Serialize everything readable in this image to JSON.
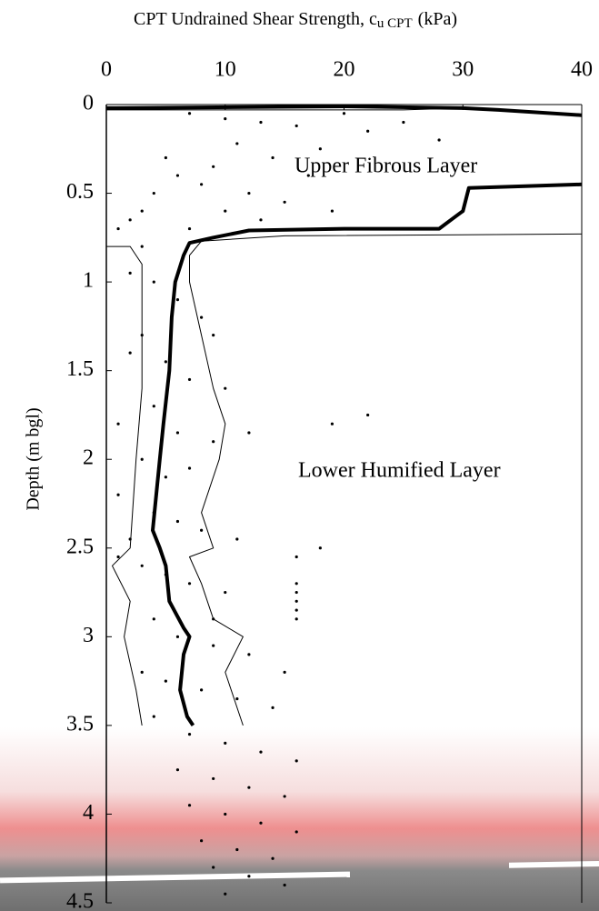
{
  "chart_data": {
    "type": "scatter",
    "xlabel": "CPT Undrained Shear Strength, c",
    "xlabel_sub": "u CPT",
    "xlabel_unit": "(kPa)",
    "ylabel": "Depth (m bgl)",
    "annotations": [
      "Upper Fibrous Layer",
      "Lower Humified Layer"
    ],
    "xlim": [
      0,
      40
    ],
    "xticks": [
      0,
      10,
      20,
      30,
      40
    ],
    "ylim": [
      0,
      4.5
    ],
    "yticks": [
      0,
      0.5,
      1,
      1.5,
      2,
      2.5,
      3,
      3.5,
      4,
      4.5
    ],
    "y_inverted": true,
    "x_axis_position": "top",
    "series": [
      {
        "mode": "markers",
        "color": "#000000",
        "x": [
          7,
          10,
          13,
          16,
          20,
          22,
          25,
          28,
          18,
          14,
          11,
          9,
          6,
          4,
          3,
          2,
          1,
          8,
          12,
          15,
          17,
          19,
          13,
          10,
          7,
          5,
          3,
          2,
          4,
          6,
          8,
          9,
          3,
          2,
          5,
          7,
          10,
          4,
          1,
          6,
          9,
          12,
          3,
          5,
          7,
          1,
          4,
          6,
          2,
          8,
          1,
          3,
          5,
          7,
          10,
          16,
          16,
          16,
          16,
          16,
          4,
          6,
          9,
          12,
          3,
          5,
          8,
          11,
          14,
          4,
          7,
          10,
          13,
          16,
          6,
          9,
          12,
          15,
          7,
          10,
          13,
          16,
          8,
          11,
          14,
          9,
          12,
          15,
          10,
          18,
          16,
          22,
          19,
          9,
          11,
          15
        ],
        "y": [
          0.05,
          0.08,
          0.1,
          0.12,
          0.05,
          0.15,
          0.1,
          0.2,
          0.25,
          0.3,
          0.22,
          0.35,
          0.4,
          0.5,
          0.6,
          0.65,
          0.7,
          0.45,
          0.5,
          0.55,
          0.4,
          0.6,
          0.65,
          0.6,
          0.7,
          0.3,
          0.8,
          0.95,
          1.0,
          1.1,
          1.2,
          1.3,
          1.3,
          1.4,
          1.45,
          1.55,
          1.6,
          1.7,
          1.8,
          1.85,
          1.9,
          1.85,
          2.0,
          2.1,
          2.05,
          2.2,
          2.3,
          2.35,
          2.45,
          2.4,
          2.55,
          2.6,
          2.65,
          2.7,
          2.75,
          2.7,
          2.75,
          2.8,
          2.85,
          2.9,
          2.9,
          3.0,
          3.05,
          3.1,
          3.2,
          3.25,
          3.3,
          3.35,
          3.4,
          3.45,
          3.55,
          3.6,
          3.65,
          3.7,
          3.75,
          3.8,
          3.85,
          3.9,
          3.95,
          4.0,
          4.05,
          4.1,
          4.15,
          4.2,
          4.25,
          4.3,
          4.35,
          4.4,
          4.45,
          2.5,
          2.55,
          1.75,
          1.8,
          2.9,
          2.45,
          3.2
        ]
      },
      {
        "mode": "line",
        "color": "#000000",
        "width": 4,
        "x": [
          0,
          20,
          30,
          33,
          40,
          null,
          40,
          30.5,
          30,
          29,
          28,
          20,
          12,
          9,
          7,
          6.5,
          5.8,
          5.5,
          5.3,
          4.8,
          4.5,
          4.2,
          3.9,
          4.5,
          5,
          5.3,
          6.5,
          7,
          6.5,
          6.2,
          6.8,
          7.3
        ],
        "y": [
          0.02,
          0.01,
          0.02,
          0.03,
          0.06,
          null,
          0.45,
          0.47,
          0.6,
          0.65,
          0.7,
          0.7,
          0.71,
          0.75,
          0.78,
          0.85,
          1.0,
          1.2,
          1.5,
          1.8,
          2.0,
          2.2,
          2.4,
          2.5,
          2.6,
          2.8,
          2.95,
          3.0,
          3.1,
          3.3,
          3.45,
          3.5
        ]
      },
      {
        "mode": "line",
        "color": "#000000",
        "width": 1,
        "x": [
          0,
          25,
          30,
          null,
          40,
          15,
          8,
          7,
          7,
          8,
          9,
          10,
          9.5,
          8,
          9,
          7,
          8,
          9,
          11.5,
          10,
          11.5
        ],
        "y": [
          0.03,
          0.03,
          0.02,
          null,
          0.73,
          0.74,
          0.77,
          0.85,
          1.0,
          1.3,
          1.6,
          1.8,
          2.0,
          2.3,
          2.5,
          2.55,
          2.7,
          2.9,
          3.0,
          3.2,
          3.5
        ]
      },
      {
        "mode": "line",
        "color": "#000000",
        "width": 1,
        "x": [
          0,
          2,
          3,
          3,
          3,
          2.5,
          2,
          0.5,
          2,
          1.5,
          2.5,
          3
        ],
        "y": [
          0.8,
          0.8,
          0.9,
          1.2,
          1.6,
          2.0,
          2.5,
          2.6,
          2.8,
          3.0,
          3.3,
          3.5
        ]
      }
    ]
  }
}
